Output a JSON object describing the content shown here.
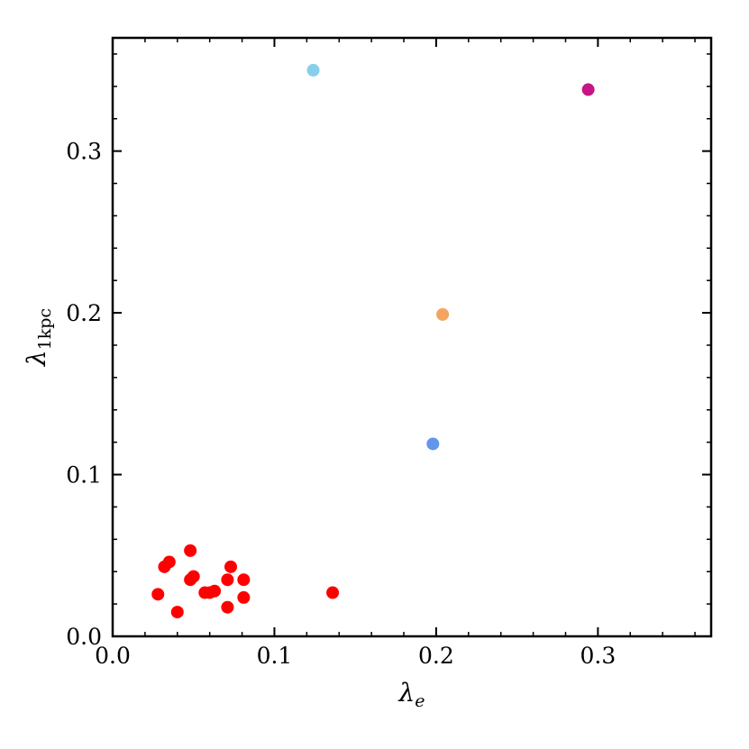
{
  "chart_data": {
    "type": "scatter",
    "title": "",
    "xlabel": {
      "base": "λ",
      "subscript": "e"
    },
    "ylabel": {
      "base": "λ",
      "subscript": "1kpc"
    },
    "xlim": [
      0.0,
      0.37
    ],
    "ylim": [
      0.0,
      0.37
    ],
    "x_ticks": [
      0.0,
      0.1,
      0.2,
      0.3
    ],
    "y_ticks": [
      0.0,
      0.1,
      0.2,
      0.3
    ],
    "x_tick_labels": [
      "0.0",
      "0.1",
      "0.2",
      "0.3"
    ],
    "y_tick_labels": [
      "0.0",
      "0.1",
      "0.2",
      "0.3"
    ],
    "minor_step": 0.02,
    "grid": false,
    "points": [
      {
        "x": 0.028,
        "y": 0.026,
        "color": "#ff0000"
      },
      {
        "x": 0.032,
        "y": 0.043,
        "color": "#ff0000"
      },
      {
        "x": 0.035,
        "y": 0.046,
        "color": "#ff0000"
      },
      {
        "x": 0.04,
        "y": 0.015,
        "color": "#ff0000"
      },
      {
        "x": 0.048,
        "y": 0.053,
        "color": "#ff0000"
      },
      {
        "x": 0.048,
        "y": 0.035,
        "color": "#ff0000"
      },
      {
        "x": 0.05,
        "y": 0.037,
        "color": "#ff0000"
      },
      {
        "x": 0.057,
        "y": 0.027,
        "color": "#ff0000"
      },
      {
        "x": 0.06,
        "y": 0.027,
        "color": "#ff0000"
      },
      {
        "x": 0.063,
        "y": 0.028,
        "color": "#ff0000"
      },
      {
        "x": 0.071,
        "y": 0.035,
        "color": "#ff0000"
      },
      {
        "x": 0.071,
        "y": 0.018,
        "color": "#ff0000"
      },
      {
        "x": 0.073,
        "y": 0.043,
        "color": "#ff0000"
      },
      {
        "x": 0.081,
        "y": 0.035,
        "color": "#ff0000"
      },
      {
        "x": 0.081,
        "y": 0.024,
        "color": "#ff0000"
      },
      {
        "x": 0.136,
        "y": 0.027,
        "color": "#ff0000"
      },
      {
        "x": 0.124,
        "y": 0.35,
        "color": "#87ceeb"
      },
      {
        "x": 0.198,
        "y": 0.119,
        "color": "#6495ed"
      },
      {
        "x": 0.204,
        "y": 0.199,
        "color": "#f4a460"
      },
      {
        "x": 0.294,
        "y": 0.338,
        "color": "#c71585"
      }
    ]
  }
}
